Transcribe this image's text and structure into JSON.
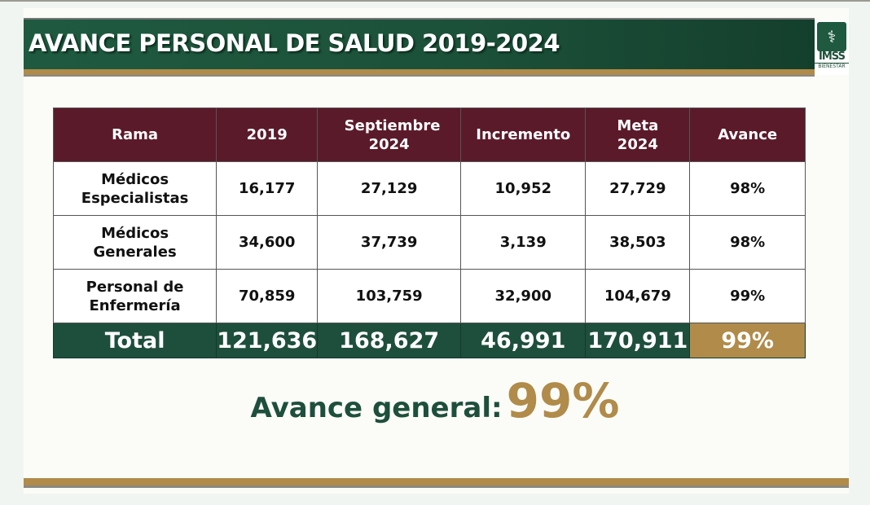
{
  "header": {
    "title": "AVANCE PERSONAL DE SALUD 2019-2024",
    "logo_text": "IMSS",
    "logo_subtext": "BIENESTAR"
  },
  "table": {
    "columns": [
      "Rama",
      "2019",
      "Septiembre 2024",
      "Incremento",
      "Meta 2024",
      "Avance"
    ],
    "rows": [
      [
        "Médicos Especialistas",
        "16,177",
        "27,129",
        "10,952",
        "27,729",
        "98%"
      ],
      [
        "Médicos Generales",
        "34,600",
        "37,739",
        "3,139",
        "38,503",
        "98%"
      ],
      [
        "Personal de Enfermería",
        "70,859",
        "103,759",
        "32,900",
        "104,679",
        "99%"
      ]
    ],
    "total": [
      "Total",
      "121,636",
      "168,627",
      "46,991",
      "170,911",
      "99%"
    ]
  },
  "summary": {
    "label": "Avance general:",
    "value": "99%"
  },
  "colors": {
    "green": "#1e4f3c",
    "maroon": "#5b1a2a",
    "gold": "#b08b4a"
  }
}
